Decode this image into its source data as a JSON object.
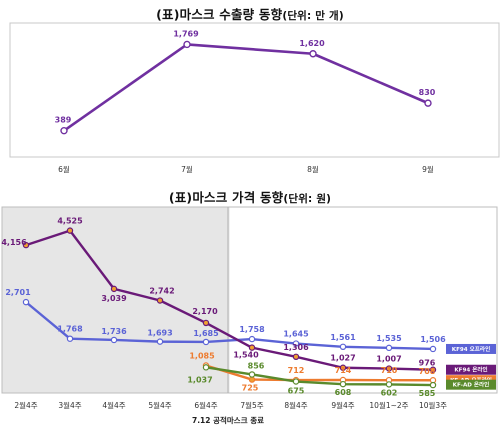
{
  "chart_data": [
    {
      "type": "line",
      "title": "(표)마스크 수출량 동향",
      "title_unit": "(단위: 만 개)",
      "categories": [
        "6월",
        "7월",
        "8월",
        "9월"
      ],
      "series": [
        {
          "values": [
            389,
            1769,
            1620,
            830
          ],
          "labels": [
            "389",
            "1,769",
            "1,620",
            "830"
          ],
          "color": "#7030a0"
        }
      ],
      "ylim": [
        0,
        2000
      ],
      "grid": false
    },
    {
      "type": "line",
      "title": "(표)마스크 가격 동향",
      "title_unit": "(단위: 원)",
      "categories": [
        "2월4주",
        "3월4주",
        "4월4주",
        "5월4주",
        "6월4주",
        "7월5주",
        "8월4주",
        "9월4주",
        "10월1~2주",
        "10월3주"
      ],
      "series": [
        {
          "name": "KF94 오프라인",
          "color": "#5b63d6",
          "values": [
            2701,
            1768,
            1736,
            1693,
            1685,
            1758,
            1645,
            1561,
            1535,
            1506
          ],
          "labels": [
            "2,701",
            "1,768",
            "1,736",
            "1,693",
            "1,685",
            "1,758",
            "1,645",
            "1,561",
            "1,535",
            "1,506"
          ]
        },
        {
          "name": "KF94 온라인",
          "color": "#6a1a78",
          "values": [
            4156,
            4525,
            3039,
            2742,
            2170,
            1540,
            1306,
            1027,
            1007,
            976
          ],
          "labels": [
            "4,156",
            "4,525",
            "3,039",
            "2,742",
            "2,170",
            "1,540",
            "1,306",
            "1,027",
            "1,007",
            "976"
          ]
        },
        {
          "name": "KF-AD 오프라인",
          "color": "#ed7b2f",
          "values": [
            null,
            null,
            null,
            null,
            1085,
            725,
            712,
            714,
            710,
            708
          ],
          "labels": [
            "",
            "",
            "",
            "",
            "1,085",
            "725",
            "712",
            "714",
            "710",
            "708"
          ]
        },
        {
          "name": "KF-AD 온라인",
          "color": "#5a8a2c",
          "values": [
            null,
            null,
            null,
            null,
            1037,
            856,
            675,
            608,
            602,
            585
          ],
          "labels": [
            "",
            "",
            "",
            "",
            "1,037",
            "856",
            "675",
            "608",
            "602",
            "585"
          ]
        }
      ],
      "ylim": [
        0,
        5000
      ],
      "shaded_region": [
        0,
        4
      ],
      "annotation": "7.12 공적마스크 종료",
      "legend": "right"
    }
  ]
}
